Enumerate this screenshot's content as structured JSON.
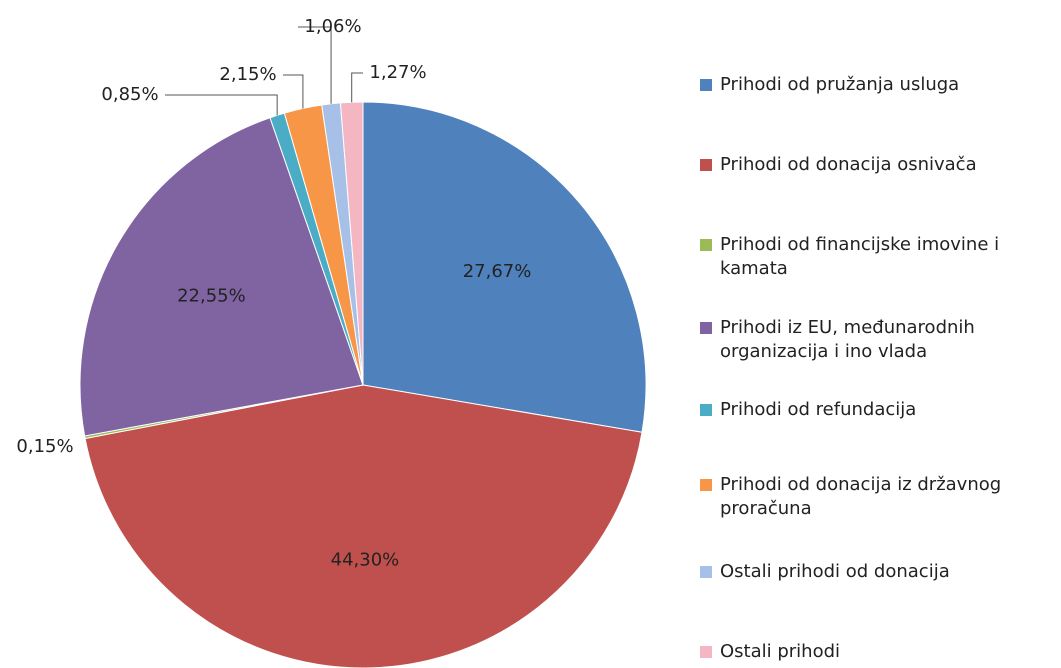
{
  "chart_data": {
    "type": "pie",
    "categories": [
      "Prihodi od pružanja usluga",
      "Prihodi od donacija osnivača",
      "Prihodi od financijske imovine i kamata",
      "Prihodi iz EU, međunarodnih organizacija i ino vlada",
      "Prihodi od refundacija",
      "Prihodi od donacija iz državnog proračuna",
      "Ostali prihodi od donacija",
      "Ostali prihodi"
    ],
    "values": [
      27.67,
      44.3,
      0.15,
      22.55,
      0.85,
      2.15,
      1.06,
      1.27
    ],
    "value_labels": [
      "27,67%",
      "44,30%",
      "0,15%",
      "22,55%",
      "0,85%",
      "2,15%",
      "1,06%",
      "1,27%"
    ],
    "colors": [
      "#4f81bd",
      "#c0504d",
      "#9bbb59",
      "#8064a2",
      "#4bacc6",
      "#f79646",
      "#a7c0e8",
      "#f4b6c2"
    ],
    "legend": "right"
  }
}
